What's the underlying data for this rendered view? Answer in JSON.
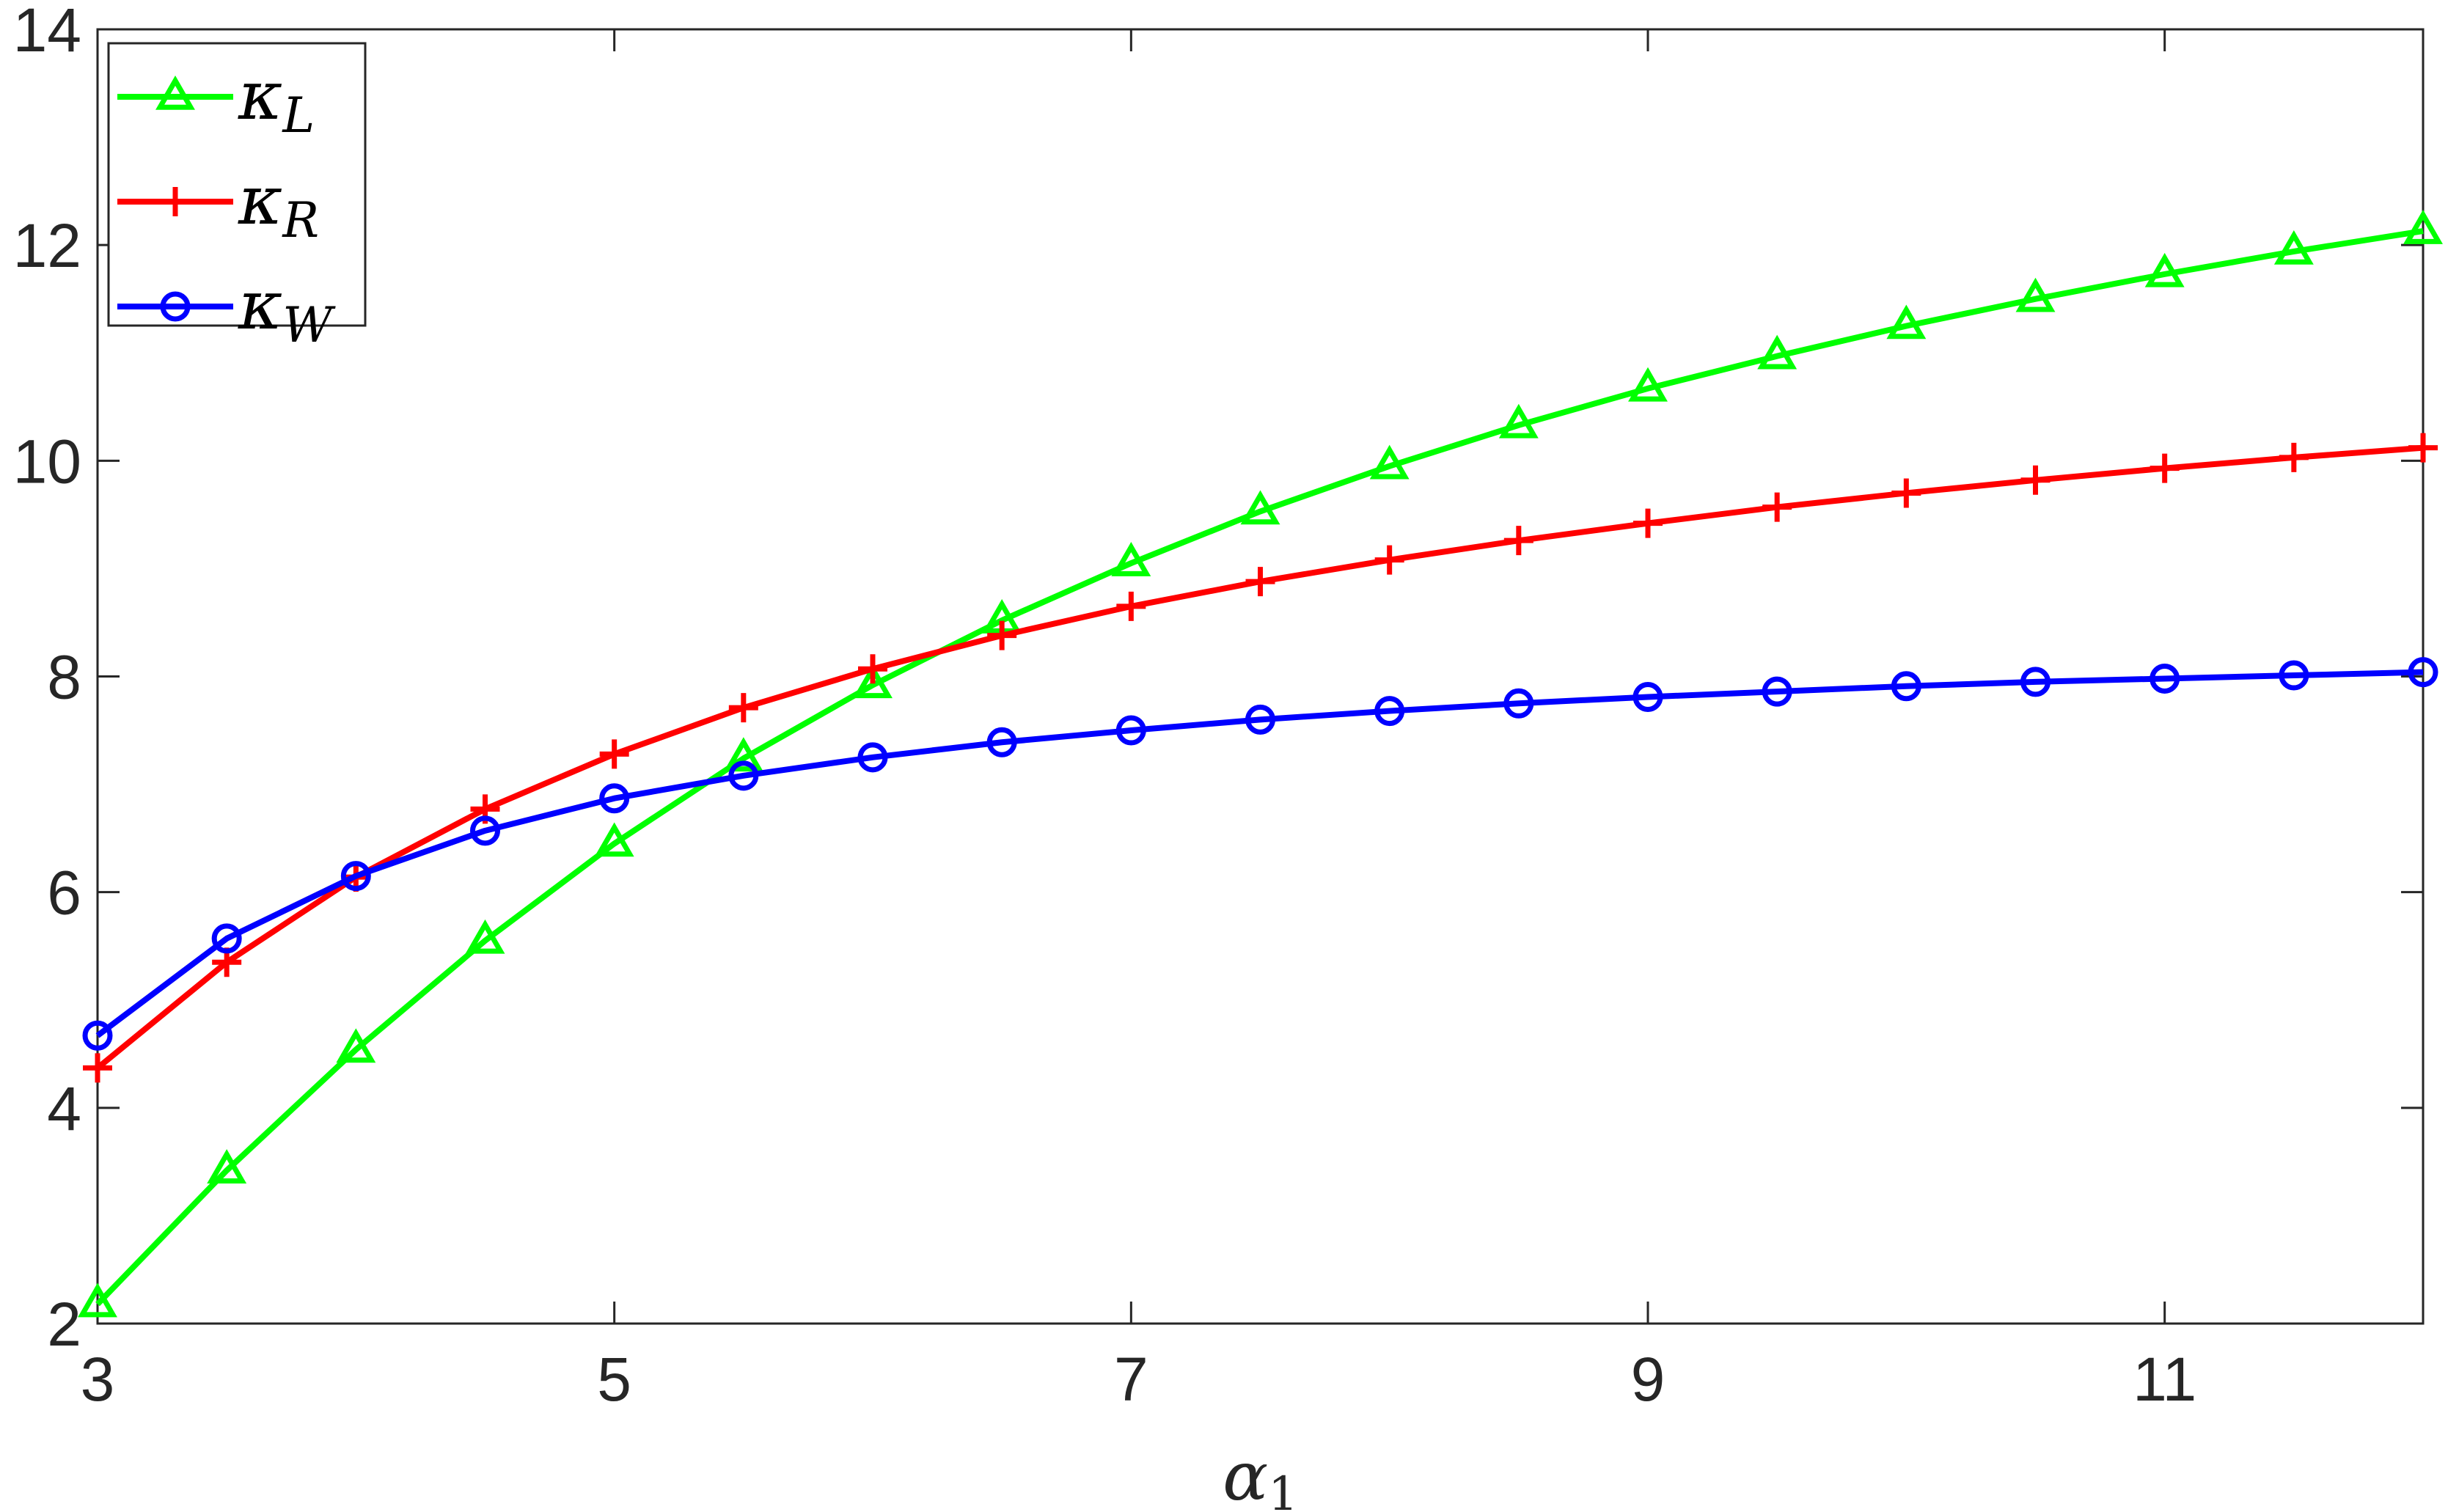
{
  "chart_data": {
    "type": "line",
    "xlabel": "α",
    "xlabel_sub": "1",
    "ylabel": "",
    "xlim": [
      3,
      12
    ],
    "ylim": [
      2,
      14
    ],
    "xticks": [
      3,
      5,
      7,
      9,
      11
    ],
    "yticks": [
      2,
      4,
      6,
      8,
      10,
      12,
      14
    ],
    "grid": false,
    "legend_position": "top-left",
    "x": [
      3,
      3.5,
      4,
      4.5,
      5,
      5.5,
      6,
      6.5,
      7,
      7.5,
      8,
      8.5,
      9,
      9.5,
      10,
      10.5,
      11,
      11.5,
      12
    ],
    "series": [
      {
        "name": "κ",
        "sub": "L",
        "color": "#00ff00",
        "marker": "triangle",
        "values": [
          2.18,
          3.42,
          4.54,
          5.55,
          6.45,
          7.24,
          7.92,
          8.52,
          9.05,
          9.53,
          9.95,
          10.33,
          10.67,
          10.97,
          11.25,
          11.5,
          11.73,
          11.94,
          12.13
        ]
      },
      {
        "name": "κ",
        "sub": "R",
        "color": "#ff0000",
        "marker": "plus",
        "values": [
          4.37,
          5.35,
          6.14,
          6.77,
          7.28,
          7.71,
          8.07,
          8.38,
          8.65,
          8.88,
          9.08,
          9.26,
          9.42,
          9.57,
          9.7,
          9.82,
          9.93,
          10.03,
          10.12
        ]
      },
      {
        "name": "κ",
        "sub": "W",
        "color": "#0000ff",
        "marker": "circle",
        "values": [
          4.67,
          5.57,
          6.15,
          6.57,
          6.87,
          7.08,
          7.25,
          7.39,
          7.5,
          7.6,
          7.68,
          7.75,
          7.81,
          7.86,
          7.91,
          7.95,
          7.98,
          8.01,
          8.04
        ]
      }
    ]
  }
}
